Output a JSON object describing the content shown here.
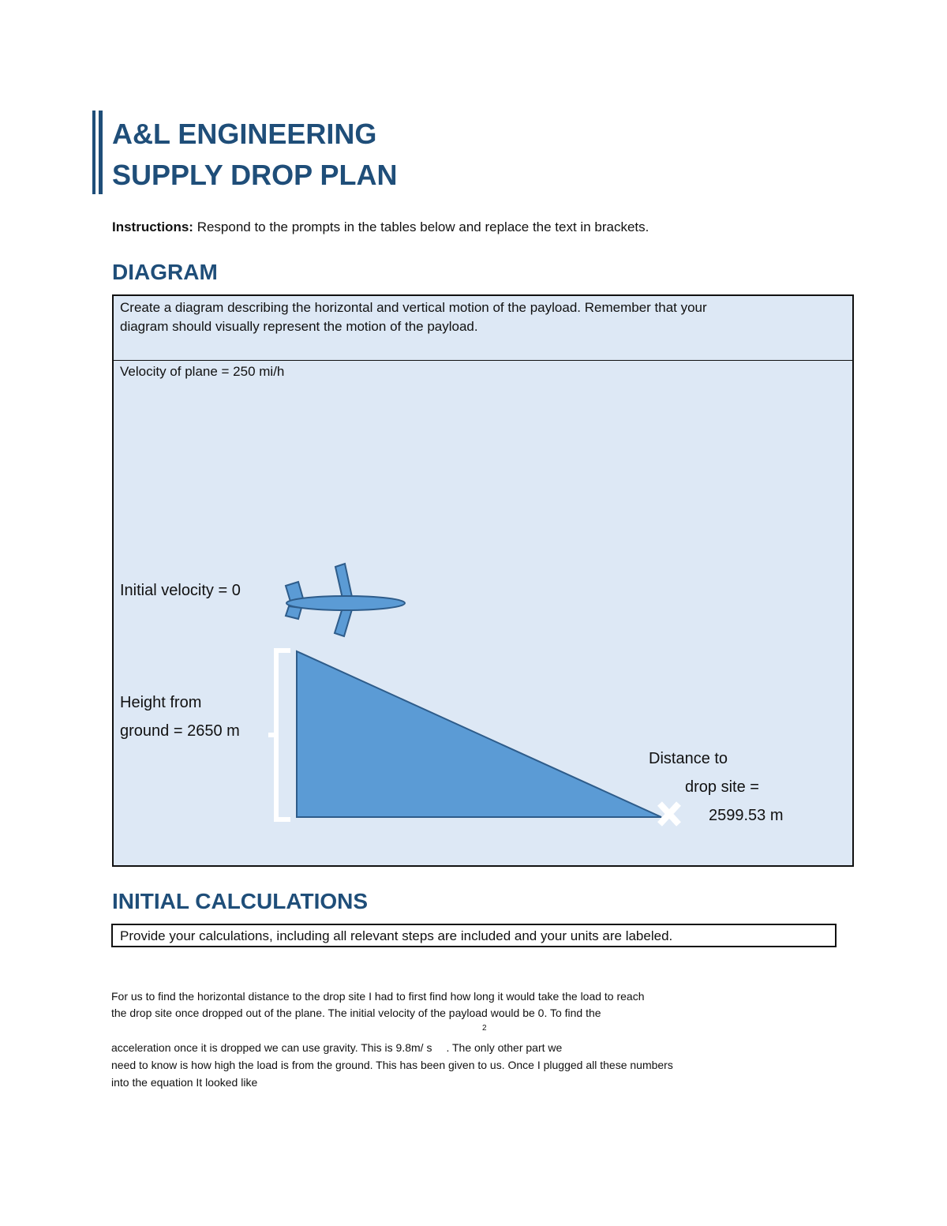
{
  "header": {
    "title_line1": "A&L ENGINEERING",
    "title_line2": "SUPPLY DROP PLAN"
  },
  "instructions": {
    "label": "Instructions:",
    "text": "Respond to the prompts in the tables below and replace the text in brackets."
  },
  "diagram": {
    "heading": "DIAGRAM",
    "prompt": [
      "Create a diagram describing the horizontal and vertical motion of the payload. Remember that your",
      "diagram should visually represent the motion of the payload."
    ],
    "velocity": "Velocity of plane = 250 mi/h",
    "initial_velocity": "Initial velocity = 0",
    "height": [
      "Height from",
      "ground = 2650 m"
    ],
    "distance": [
      "Distance to",
      "drop site =",
      "2599.53 m"
    ]
  },
  "calculations": {
    "heading": "INITIAL CALCULATIONS",
    "prompt": "Provide your calculations, including all relevant steps are included and your units are labeled.",
    "lines": [
      "For us to find the horizontal distance to the drop site I had to first find how long it would take the load to reach",
      "the drop site once dropped out of the plane. The initial velocity of the payload would be 0. To find the",
      "acceleration once it is dropped we can use gravity. This is 9.8m/ s",
      "need to know is how high the load is from the ground. This has been given to us. Once I plugged all these numbers",
      "into the equation It looked like"
    ],
    "exponent": "2",
    "line_continuation": ". The only other part we"
  }
}
